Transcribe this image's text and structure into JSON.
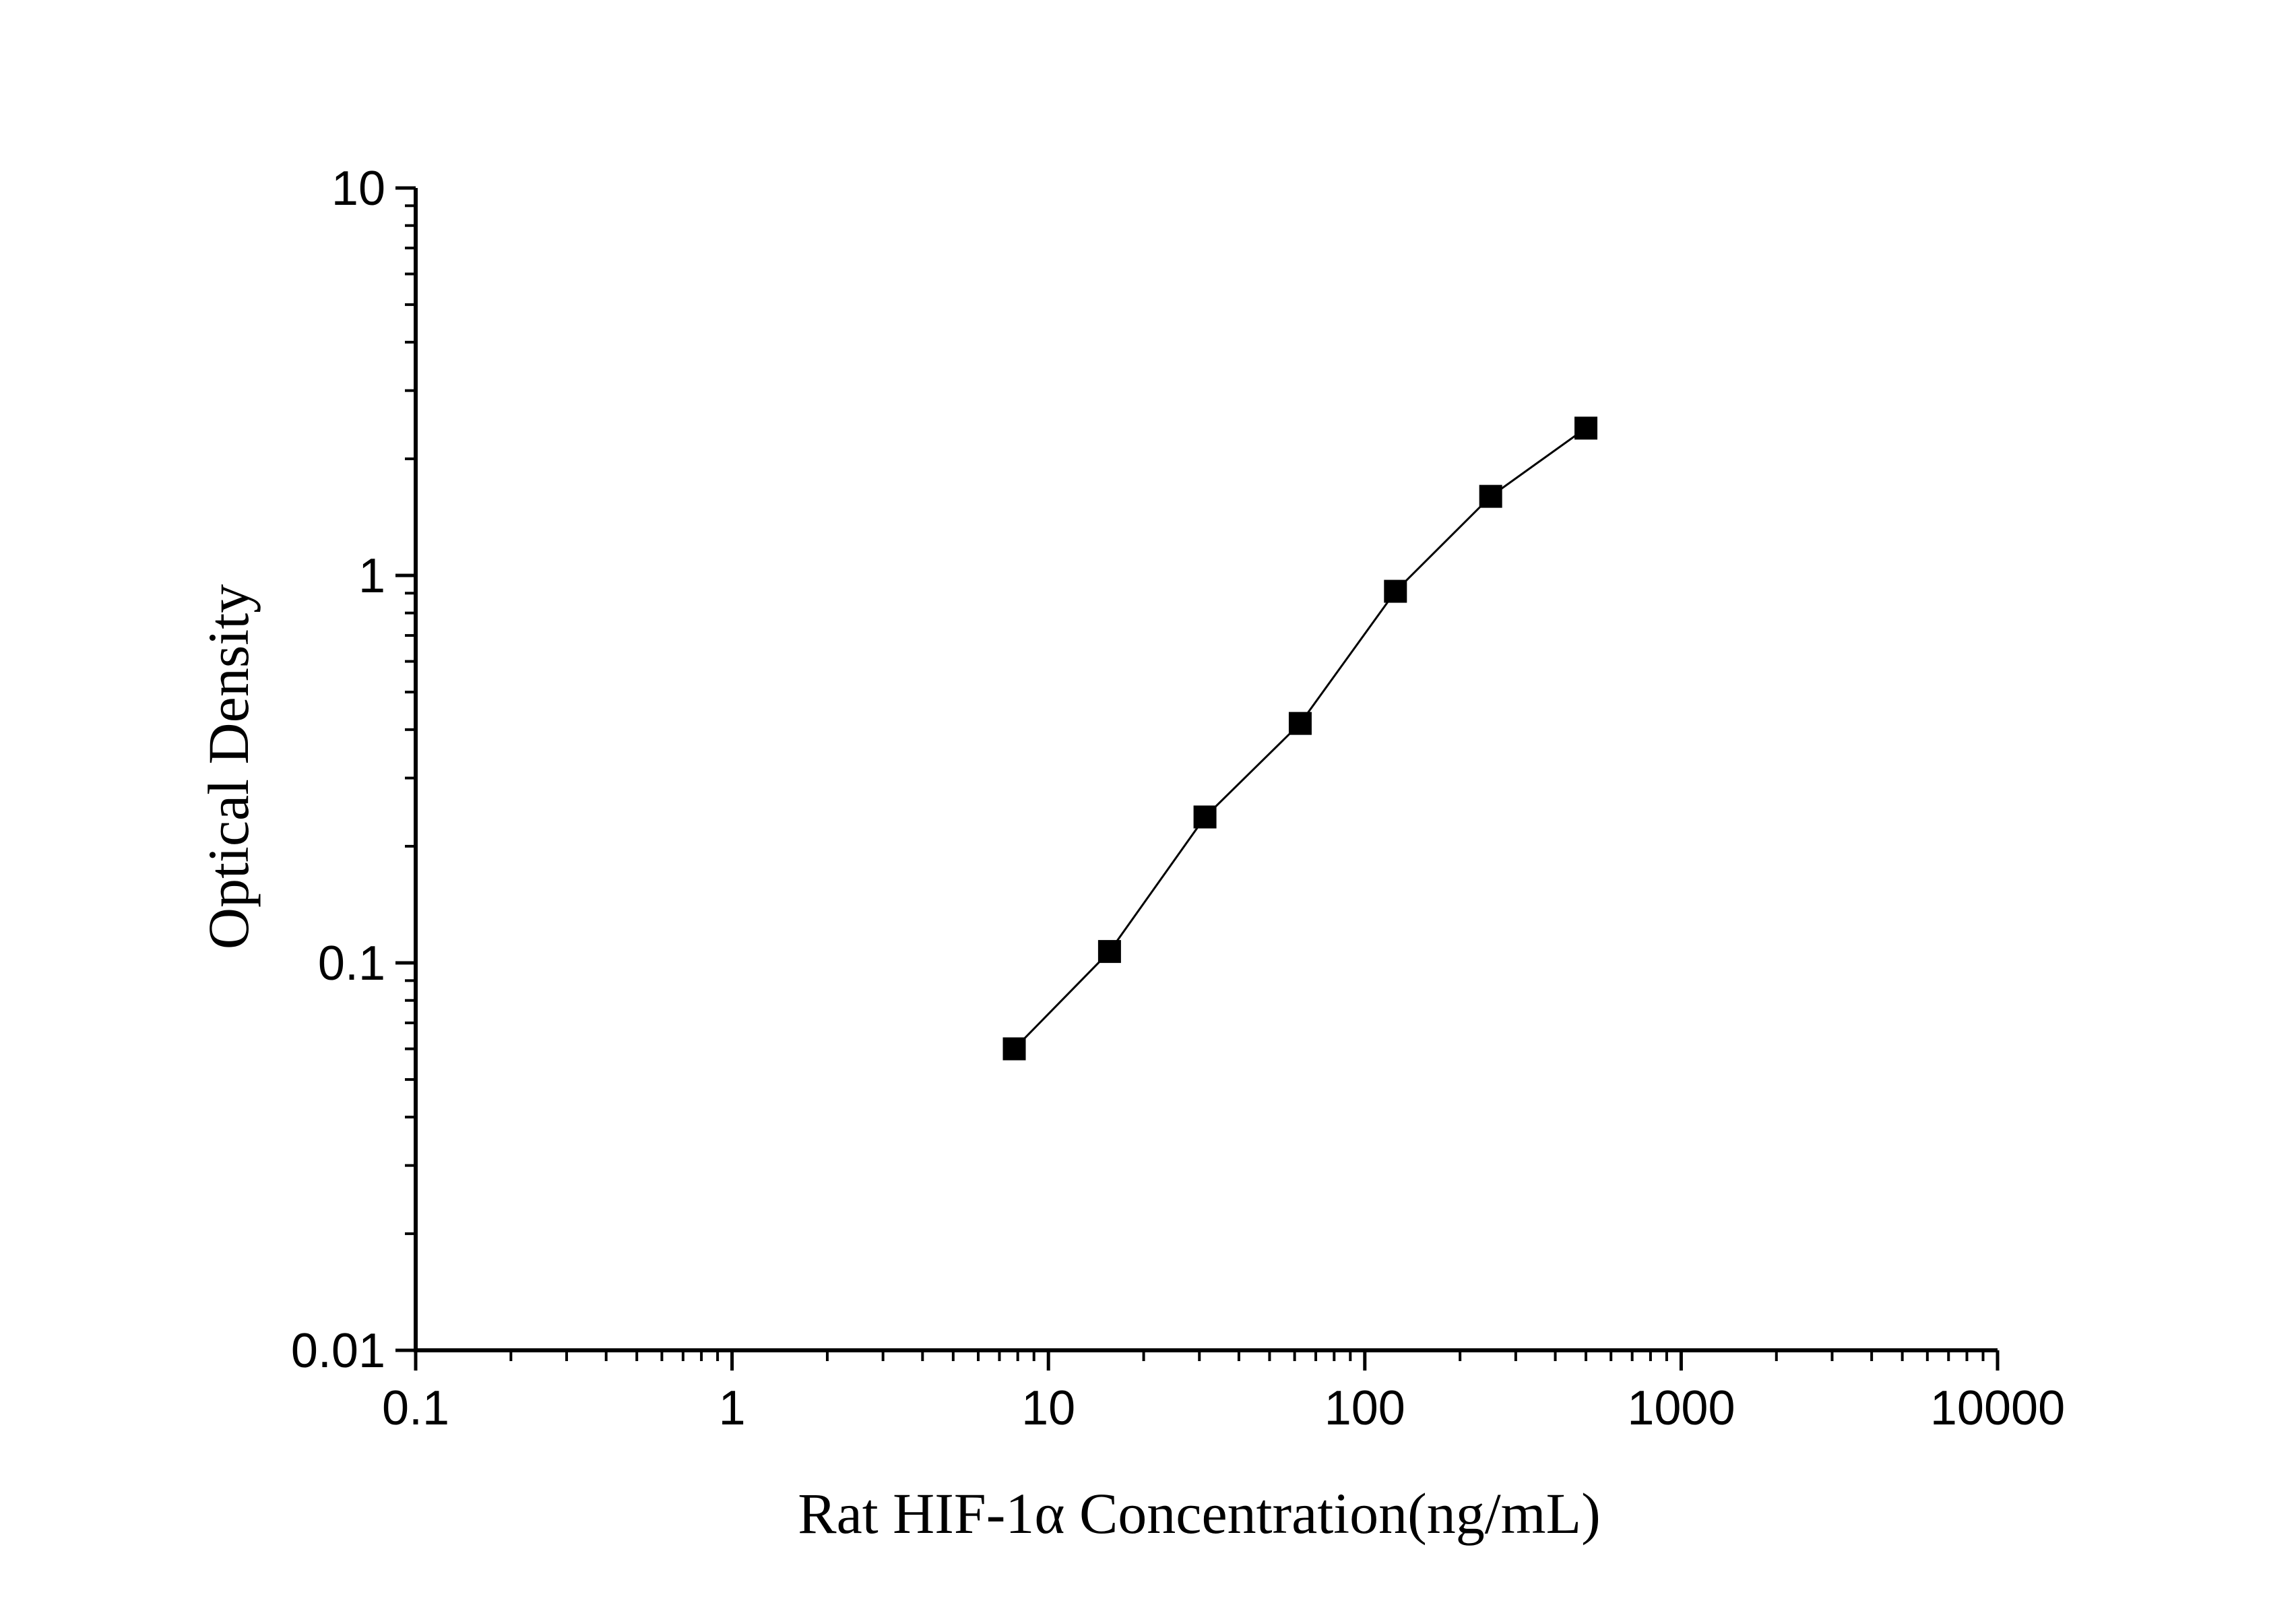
{
  "chart_data": {
    "type": "line",
    "title": "",
    "xlabel": "Rat HIF-1α Concentration(ng/mL)",
    "ylabel": "Optical Density",
    "x_scale": "log",
    "y_scale": "log",
    "xlim": [
      0.1,
      10000
    ],
    "ylim": [
      0.01,
      10
    ],
    "x_ticks": [
      "0.1",
      "1",
      "10",
      "100",
      "1000",
      "10000"
    ],
    "y_ticks": [
      "0.01",
      "0.1",
      "1",
      "10"
    ],
    "grid": false,
    "legend": "none",
    "marker": "square",
    "color": "#000000",
    "series": [
      {
        "x": [
          7.8,
          15.6,
          31.25,
          62.5,
          125,
          250,
          500
        ],
        "y": [
          0.06,
          0.107,
          0.238,
          0.415,
          0.91,
          1.6,
          2.4
        ]
      }
    ]
  }
}
